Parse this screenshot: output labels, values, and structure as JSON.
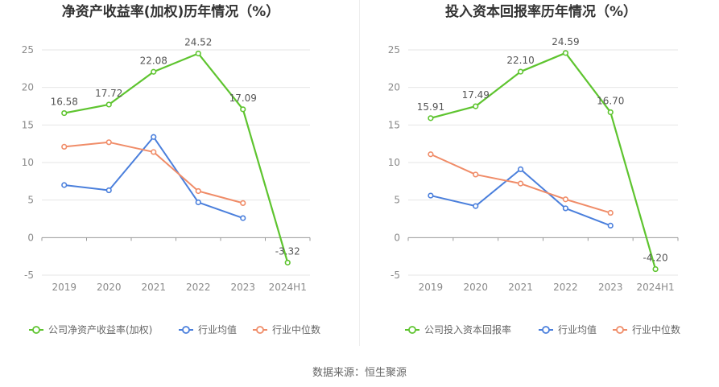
{
  "source": "数据来源：恒生聚源",
  "chart_data": [
    {
      "type": "line",
      "title": "净资产收益率(加权)历年情况（%）",
      "categories": [
        "2019",
        "2020",
        "2021",
        "2022",
        "2023",
        "2024H1"
      ],
      "ylim": [
        -5,
        25
      ],
      "yticks": [
        -5,
        0,
        5,
        10,
        15,
        20,
        25
      ],
      "grid": true,
      "legend_position": "bottom",
      "series": [
        {
          "name": "公司净资产收益率(加权)",
          "color": "#5ec42f",
          "values": [
            16.58,
            17.72,
            22.08,
            24.52,
            17.09,
            -3.32
          ],
          "labels": [
            "16.58",
            "17.72",
            "22.08",
            "24.52",
            "17.09",
            "-3.32"
          ]
        },
        {
          "name": "行业均值",
          "color": "#4a7fdc",
          "values": [
            7.0,
            6.3,
            13.4,
            4.7,
            2.6,
            null
          ]
        },
        {
          "name": "行业中位数",
          "color": "#f08c68",
          "values": [
            12.1,
            12.7,
            11.4,
            6.2,
            4.6,
            null
          ]
        }
      ]
    },
    {
      "type": "line",
      "title": "投入资本回报率历年情况（%）",
      "categories": [
        "2019",
        "2020",
        "2021",
        "2022",
        "2023",
        "2024H1"
      ],
      "ylim": [
        -5,
        25
      ],
      "yticks": [
        -5,
        0,
        5,
        10,
        15,
        20,
        25
      ],
      "grid": true,
      "legend_position": "bottom",
      "series": [
        {
          "name": "公司投入资本回报率",
          "color": "#5ec42f",
          "values": [
            15.91,
            17.49,
            22.1,
            24.59,
            16.7,
            -4.2
          ],
          "labels": [
            "15.91",
            "17.49",
            "22.10",
            "24.59",
            "16.70",
            "-4.20"
          ]
        },
        {
          "name": "行业均值",
          "color": "#4a7fdc",
          "values": [
            5.6,
            4.2,
            9.1,
            3.9,
            1.6,
            null
          ]
        },
        {
          "name": "行业中位数",
          "color": "#f08c68",
          "values": [
            11.1,
            8.4,
            7.2,
            5.1,
            3.3,
            null
          ]
        }
      ]
    }
  ]
}
